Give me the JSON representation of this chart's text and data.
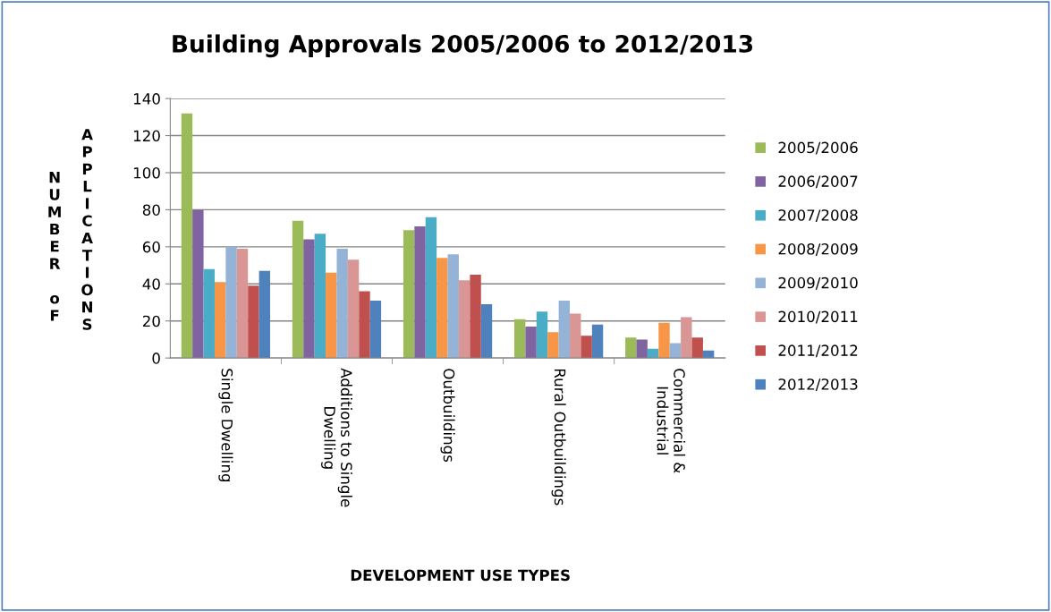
{
  "chart_data": {
    "type": "bar",
    "title": "Building Approvals 2005/2006 to 2012/2013",
    "xlabel": "DEVELOPMENT USE TYPES",
    "ylabel": "NUMBER oF APPLICATIONS",
    "categories": [
      "Single Dwelling",
      "Additions to Single\nDwelling",
      "Outbuildings",
      "Rural Outbuildings",
      "Commercial &\nIndustrial"
    ],
    "series": [
      {
        "name": "2005/2006",
        "color": "#9bbb59",
        "values": [
          132,
          74,
          69,
          21,
          11
        ]
      },
      {
        "name": "2006/2007",
        "color": "#8064a2",
        "values": [
          80,
          64,
          71,
          17,
          10
        ]
      },
      {
        "name": "2007/2008",
        "color": "#4bacc6",
        "values": [
          48,
          67,
          76,
          25,
          5
        ]
      },
      {
        "name": "2008/2009",
        "color": "#f79646",
        "values": [
          41,
          46,
          54,
          14,
          19
        ]
      },
      {
        "name": "2009/2010",
        "color": "#95b3d7",
        "values": [
          60,
          59,
          56,
          31,
          8
        ]
      },
      {
        "name": "2010/2011",
        "color": "#d99694",
        "values": [
          59,
          53,
          42,
          24,
          22
        ]
      },
      {
        "name": "2011/2012",
        "color": "#c0504d",
        "values": [
          39,
          36,
          45,
          12,
          11
        ]
      },
      {
        "name": "2012/2013",
        "color": "#4f81bd",
        "values": [
          47,
          31,
          29,
          18,
          4
        ]
      }
    ],
    "ylim": [
      0,
      140
    ],
    "yticks": [
      0,
      20,
      40,
      60,
      80,
      100,
      120,
      140
    ],
    "grid": "y",
    "legend": "right"
  }
}
